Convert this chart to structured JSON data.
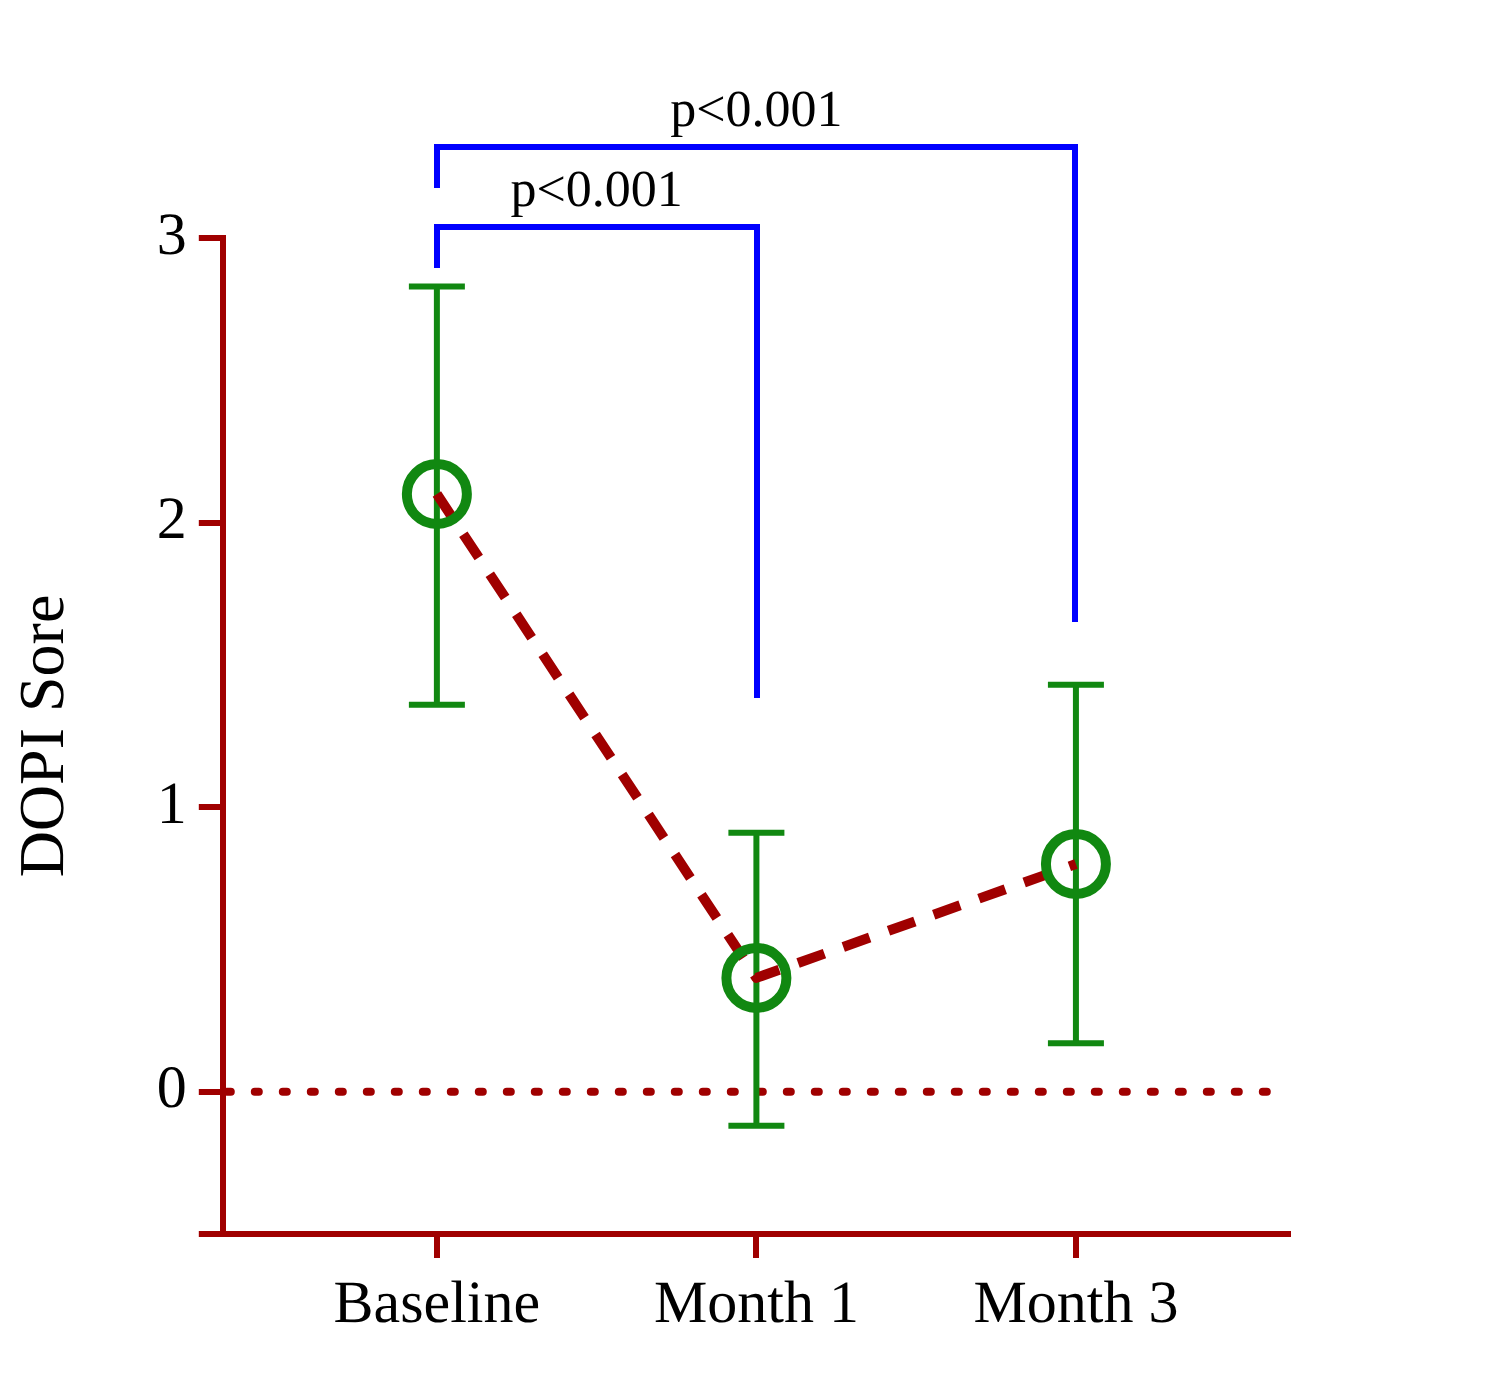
{
  "chart_data": {
    "type": "line",
    "ylabel": "DOPI Sore",
    "categories": [
      "Baseline",
      "Month 1",
      "Month 3"
    ],
    "series": [
      {
        "color": "#a00000",
        "values": [
          2.1,
          0.4,
          0.8
        ],
        "line_style": "dashed",
        "marker": "none"
      },
      {
        "type": "scatter",
        "color": "#118811",
        "values": [
          2.1,
          0.4,
          0.8
        ],
        "errors": [
          [
            1.36,
            2.83
          ],
          [
            -0.12,
            0.91
          ],
          [
            0.17,
            1.43
          ]
        ],
        "marker": "circle"
      }
    ],
    "ylim": [
      -0.5,
      3
    ],
    "yticks": [
      {
        "value": -0.5,
        "label": null
      },
      0,
      1,
      2,
      3
    ],
    "ref_lines": [
      {
        "axis": "y",
        "value": 0,
        "color": "#a00000",
        "line_style": "dotted"
      }
    ],
    "annotations": [
      "p<0.001",
      "p<0.001"
    ],
    "grid": false,
    "legend": false
  }
}
